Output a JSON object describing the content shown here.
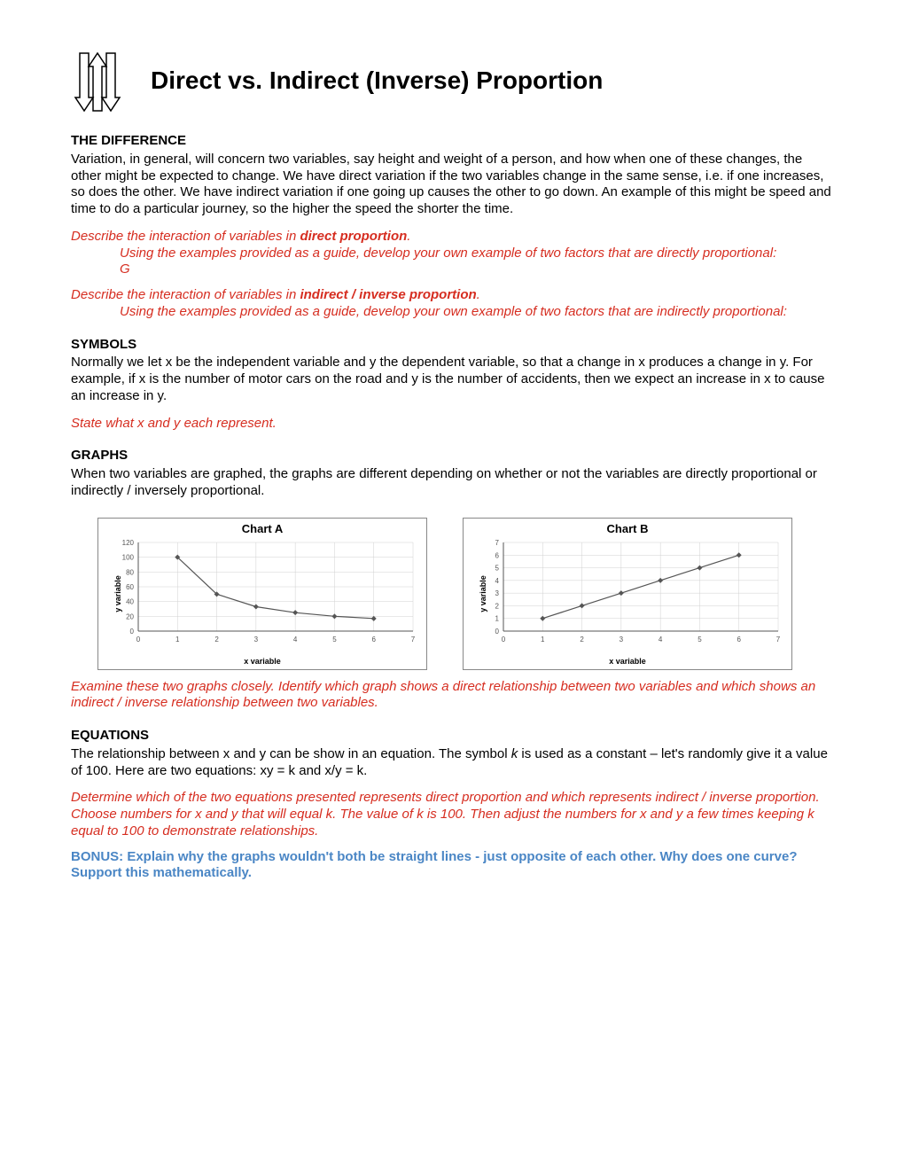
{
  "title": "Direct vs. Indirect (Inverse) Proportion",
  "sections": {
    "difference": {
      "head": "THE DIFFERENCE",
      "body": "Variation, in general, will concern two variables, say height and weight of a person, and how when one of these changes, the other might be expected to change.  We have direct variation if the two variables change in the same sense, i.e. if one increases, so does the other.  We have indirect variation if one going up causes the other to go down.  An example of this might be speed and time to do a particular journey, so the higher the speed the shorter the time."
    },
    "direct_prompt": {
      "lead": "Describe the interaction of variables in ",
      "bold": "direct proportion",
      "tail": ".",
      "sub1": "Using the examples provided as a guide, develop your own example of two factors that are directly proportional:",
      "sub2": "G"
    },
    "indirect_prompt": {
      "lead": "Describe the interaction of variables in ",
      "bold": "indirect / inverse proportion",
      "tail": ".",
      "sub1": "Using the examples provided as a guide, develop your own example of two factors that are indirectly proportional:"
    },
    "symbols": {
      "head": "SYMBOLS",
      "body": "Normally we let x be the independent variable and y the dependent variable, so that a change in x produces a change in y.  For example, if x is the number of motor cars on the road and y is the number of accidents, then we expect an increase in x to cause an increase in y.",
      "prompt": "State what x and y each represent."
    },
    "graphs": {
      "head": "GRAPHS",
      "body": "When two variables are graphed, the graphs are different depending on whether or not the variables are directly proportional or indirectly / inversely proportional.",
      "prompt": "Examine these two graphs closely.  Identify which graph shows a direct relationship between two variables and which shows an indirect / inverse relationship between two variables."
    },
    "equations": {
      "head": "EQUATIONS",
      "body_pre": "The relationship between x and y can be show in an equation.  The symbol ",
      "k": "k",
      "body_post": " is used as a constant – let's randomly give it a value of 100.  Here are two equations:  xy = k and x/y = k.",
      "prompt": "Determine which of the two equations presented represents direct proportion and which represents indirect / inverse proportion.  Choose numbers for x and y that will equal k.  The value of k is 100.  Then adjust the numbers for x and y a few times keeping k equal to 100 to demonstrate relationships."
    },
    "bonus": "BONUS: Explain why the graphs wouldn't both be straight lines - just opposite of each other.  Why does one curve?  Support this mathematically."
  },
  "chartA": {
    "title": "Chart A",
    "type": "scatter-line",
    "xlabel": "x variable",
    "ylabel": "y variable",
    "xlim": [
      0,
      7
    ],
    "ylim": [
      0,
      120
    ],
    "xticks": [
      0,
      1,
      2,
      3,
      4,
      5,
      6,
      7
    ],
    "yticks": [
      0,
      20,
      40,
      60,
      80,
      100,
      120
    ],
    "data_x": [
      1,
      2,
      3,
      4,
      5,
      6
    ],
    "data_y": [
      100,
      50,
      33,
      25,
      20,
      17
    ],
    "line_color": "#555555",
    "marker_color": "#555555",
    "grid_color": "#d0d0d0",
    "border_color": "#888888",
    "title_fontsize": 13,
    "axis_fontsize": 8,
    "marker_size": 3
  },
  "chartB": {
    "title": "Chart B",
    "type": "scatter-line",
    "xlabel": "x variable",
    "ylabel": "y variable",
    "xlim": [
      0,
      7
    ],
    "ylim": [
      0,
      7
    ],
    "xticks": [
      0,
      1,
      2,
      3,
      4,
      5,
      6,
      7
    ],
    "yticks": [
      0,
      1,
      2,
      3,
      4,
      5,
      6,
      7
    ],
    "data_x": [
      1,
      2,
      3,
      4,
      5,
      6
    ],
    "data_y": [
      1,
      2,
      3,
      4,
      5,
      6
    ],
    "line_color": "#555555",
    "marker_color": "#555555",
    "grid_color": "#d0d0d0",
    "border_color": "#888888",
    "title_fontsize": 13,
    "axis_fontsize": 8,
    "marker_size": 3
  }
}
